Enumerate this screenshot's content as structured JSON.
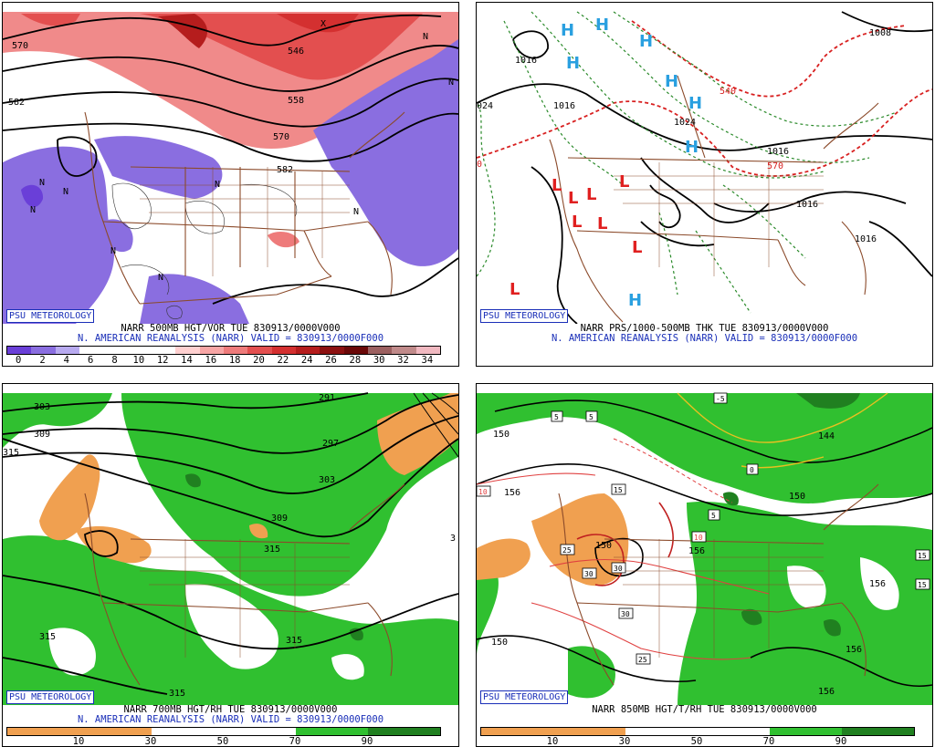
{
  "panels": [
    {
      "id": "p500",
      "credit": "PSU METEOROLOGY",
      "caption_line1": "NARR 500MB HGT/VOR TUE 830913/0000V000",
      "caption_line2": "N. AMERICAN REANALYSIS (NARR) VALID = 830913/0000F000",
      "contour_labels": [
        "570",
        "546",
        "582",
        "558",
        "570",
        "582"
      ],
      "symbols": [
        "N",
        "N",
        "N",
        "N",
        "N",
        "N",
        "N",
        "N",
        "N",
        "X"
      ],
      "colorbar": {
        "ticks": [
          "0",
          "2",
          "4",
          "6",
          "8",
          "10",
          "12",
          "14",
          "16",
          "18",
          "20",
          "22",
          "24",
          "26",
          "28",
          "30",
          "32",
          "34"
        ],
        "colors": [
          "#6a3fd8",
          "#8a6ee0",
          "#b8aaf0",
          "#ffffff",
          "#ffffff",
          "#ffffff",
          "#ffffff",
          "#ffd0d0",
          "#f7a5a5",
          "#ee7b7b",
          "#e34f4f",
          "#d43030",
          "#b51d1d",
          "#8c1010",
          "#6a0808",
          "#9c6060",
          "#c08a8a",
          "#f0b8c0"
        ]
      }
    },
    {
      "id": "psfc",
      "credit": "PSU METEOROLOGY",
      "caption_line1": "NARR PRS/1000-500MB THK TUE 830913/0000V000",
      "caption_line2": "N. AMERICAN REANALYSIS (NARR) VALID = 830913/0000F000",
      "contour_labels": [
        "1016",
        "024",
        "1016",
        "1024",
        "1016",
        "1016",
        "1016",
        "1008",
        "570",
        "540",
        "0"
      ],
      "symbols": [
        "H",
        "H",
        "H",
        "H",
        "H",
        "H",
        "H",
        "L",
        "L",
        "L",
        "L",
        "L",
        "L",
        "L",
        "L",
        "H"
      ]
    },
    {
      "id": "p700",
      "credit": "PSU METEOROLOGY",
      "caption_line1": "NARR 700MB HGT/RH TUE 830913/0000V000",
      "caption_line2": "N. AMERICAN REANALYSIS (NARR) VALID = 830913/0000F000",
      "contour_labels": [
        "303",
        "291",
        "309",
        "315",
        "297",
        "303",
        "309",
        "315",
        "315",
        "315",
        "315",
        "3"
      ],
      "colorbar": {
        "ticks": [
          "10",
          "30",
          "50",
          "70",
          "90"
        ],
        "colors": [
          "#f0a050",
          "#f0a050",
          "#ffffff",
          "#ffffff",
          "#30c030",
          "#208020"
        ]
      }
    },
    {
      "id": "p850",
      "credit": "PSU METEOROLOGY",
      "caption_line1": "NARR 850MB HGT/T/RH TUE 830913/0000V000",
      "caption_line2": "",
      "contour_labels": [
        "150",
        "156",
        "150",
        "144",
        "150",
        "156",
        "156",
        "156",
        "156",
        "150"
      ],
      "temp_labels": [
        "-5",
        "5",
        "5",
        "15",
        "5",
        "10",
        "10",
        "25",
        "30",
        "30",
        "30",
        "25",
        "15",
        "15",
        "0"
      ],
      "colorbar": {
        "ticks": [
          "10",
          "30",
          "50",
          "70",
          "90"
        ],
        "colors": [
          "#f0a050",
          "#f0a050",
          "#ffffff",
          "#ffffff",
          "#30c030",
          "#208020"
        ]
      }
    }
  ]
}
